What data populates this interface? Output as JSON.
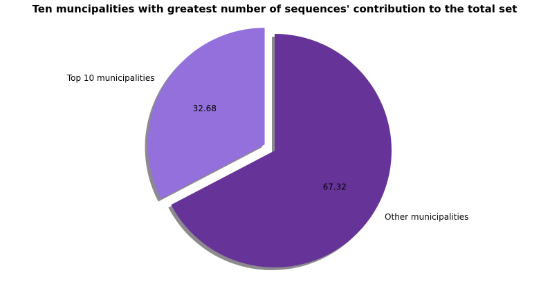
{
  "chart_data": {
    "type": "pie",
    "title": "Ten muncipalities with greatest number of sequences' contribution to the total set",
    "slices": [
      {
        "label": "Top 10 municipalities",
        "value": 32.68,
        "value_label": "32.68",
        "color": "#9370DB",
        "exploded": true
      },
      {
        "label": "Other municipalities",
        "value": 67.32,
        "value_label": "67.32",
        "color": "#663399",
        "exploded": false
      }
    ],
    "start_angle_deg": 90,
    "direction": "counterclockwise",
    "shadow": true,
    "shadow_color": "#8c8a8e"
  }
}
